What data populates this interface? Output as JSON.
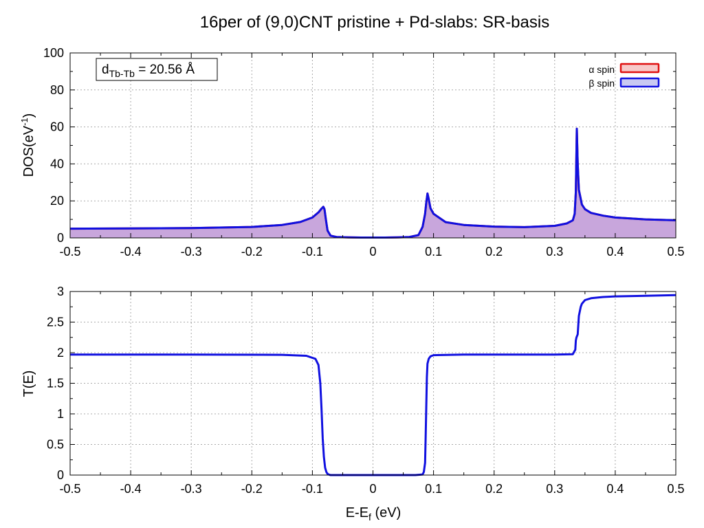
{
  "title": "16per of (9,0)CNT pristine + Pd-slabs: SR-basis",
  "colors": {
    "alpha_stroke": "#e01010",
    "alpha_fill": "#f7c9c9",
    "beta_stroke": "#1010e0",
    "beta_fill": "#c9c9f2",
    "overlap_fill": "#c8a6dc"
  },
  "chart_data": [
    {
      "type": "area",
      "panel": "top",
      "ylabel": "DOS(eV⁻¹)",
      "ylabel_main": "DOS(eV",
      "ylabel_sup": "-1",
      "ylabel_close": ")",
      "xlim": [
        -0.5,
        0.5
      ],
      "ylim": [
        0,
        100
      ],
      "xticks": [
        -0.5,
        -0.4,
        -0.3,
        -0.2,
        -0.1,
        0,
        0.1,
        0.2,
        0.3,
        0.4,
        0.5
      ],
      "xtick_labels": [
        "-0.5",
        "-0.4",
        "-0.3",
        "-0.2",
        "-0.1",
        "0",
        "0.1",
        "0.2",
        "0.3",
        "0.4",
        "0.5"
      ],
      "yticks": [
        0,
        20,
        40,
        60,
        80,
        100
      ],
      "ytick_labels": [
        "0",
        "20",
        "40",
        "60",
        "80",
        "100"
      ],
      "grid": true,
      "legend_position": "top-right",
      "annotation": {
        "main": "d",
        "sub": "Tb-Tb",
        "value": " = 20.56 Å"
      },
      "series": [
        {
          "name": "α spin",
          "x": [
            -0.5,
            -0.4,
            -0.3,
            -0.2,
            -0.15,
            -0.12,
            -0.1,
            -0.09,
            -0.085,
            -0.082,
            -0.08,
            -0.078,
            -0.075,
            -0.07,
            -0.06,
            -0.04,
            -0.02,
            0,
            0.02,
            0.04,
            0.06,
            0.075,
            0.082,
            0.086,
            0.088,
            0.09,
            0.092,
            0.095,
            0.1,
            0.12,
            0.15,
            0.2,
            0.25,
            0.3,
            0.32,
            0.33,
            0.333,
            0.335,
            0.3365,
            0.338,
            0.34,
            0.345,
            0.35,
            0.36,
            0.38,
            0.4,
            0.45,
            0.5
          ],
          "y": [
            5.0,
            5.1,
            5.3,
            5.9,
            7.0,
            8.6,
            11.0,
            13.8,
            15.8,
            16.8,
            15.5,
            10.5,
            4.0,
            1.2,
            0.5,
            0.3,
            0.2,
            0.2,
            0.2,
            0.3,
            0.5,
            1.5,
            6.0,
            13.0,
            19.0,
            24.0,
            21.0,
            16.0,
            13.0,
            8.5,
            7.0,
            6.1,
            5.8,
            6.5,
            7.8,
            9.5,
            13.0,
            25.0,
            59.0,
            40.0,
            26.0,
            18.0,
            15.5,
            13.5,
            12.0,
            11.0,
            10.0,
            9.5
          ]
        },
        {
          "name": "β spin",
          "x": [
            -0.5,
            -0.4,
            -0.3,
            -0.2,
            -0.15,
            -0.12,
            -0.1,
            -0.09,
            -0.085,
            -0.082,
            -0.08,
            -0.078,
            -0.075,
            -0.07,
            -0.06,
            -0.04,
            -0.02,
            0,
            0.02,
            0.04,
            0.06,
            0.075,
            0.082,
            0.086,
            0.088,
            0.09,
            0.092,
            0.095,
            0.1,
            0.12,
            0.15,
            0.2,
            0.25,
            0.3,
            0.32,
            0.33,
            0.333,
            0.335,
            0.3365,
            0.338,
            0.34,
            0.345,
            0.35,
            0.36,
            0.38,
            0.4,
            0.45,
            0.5
          ],
          "y": [
            5.0,
            5.1,
            5.3,
            5.9,
            7.0,
            8.6,
            11.0,
            13.8,
            15.8,
            16.8,
            15.5,
            10.5,
            4.0,
            1.2,
            0.5,
            0.3,
            0.2,
            0.2,
            0.2,
            0.3,
            0.5,
            1.5,
            6.0,
            13.0,
            19.0,
            24.0,
            21.0,
            16.0,
            13.0,
            8.5,
            7.0,
            6.1,
            5.8,
            6.5,
            7.8,
            9.5,
            13.0,
            25.0,
            59.0,
            40.0,
            26.0,
            18.0,
            15.5,
            13.5,
            12.0,
            11.0,
            10.0,
            9.5
          ]
        }
      ]
    },
    {
      "type": "line",
      "panel": "bottom",
      "ylabel": "T(E)",
      "xlabel": "E-Ef (eV)",
      "xlabel_main": "E-E",
      "xlabel_sub": "f",
      "xlabel_rest": " (eV)",
      "xlim": [
        -0.5,
        0.5
      ],
      "ylim": [
        0,
        3
      ],
      "xticks": [
        -0.5,
        -0.4,
        -0.3,
        -0.2,
        -0.1,
        0,
        0.1,
        0.2,
        0.3,
        0.4,
        0.5
      ],
      "xtick_labels": [
        "-0.5",
        "-0.4",
        "-0.3",
        "-0.2",
        "-0.1",
        "0",
        "0.1",
        "0.2",
        "0.3",
        "0.4",
        "0.5"
      ],
      "yticks": [
        0,
        0.5,
        1,
        1.5,
        2,
        2.5,
        3
      ],
      "ytick_labels": [
        "0",
        "0.5",
        "1",
        "1.5",
        "2",
        "2.5",
        "3"
      ],
      "grid": true,
      "series": [
        {
          "x": [
            -0.5,
            -0.3,
            -0.15,
            -0.11,
            -0.095,
            -0.09,
            -0.087,
            -0.085,
            -0.083,
            -0.081,
            -0.079,
            -0.077,
            -0.075,
            -0.072,
            -0.07,
            -0.06,
            0,
            0.07,
            0.082,
            0.084,
            0.086,
            0.087,
            0.088,
            0.089,
            0.09,
            0.092,
            0.095,
            0.1,
            0.15,
            0.3,
            0.33,
            0.334,
            0.335,
            0.336,
            0.338,
            0.34,
            0.342,
            0.343,
            0.345,
            0.35,
            0.36,
            0.38,
            0.4,
            0.45,
            0.5
          ],
          "y": [
            1.97,
            1.97,
            1.965,
            1.95,
            1.9,
            1.8,
            1.5,
            1.1,
            0.6,
            0.3,
            0.12,
            0.05,
            0.02,
            0.005,
            0.0,
            0.0,
            0.0,
            0.0,
            0.01,
            0.05,
            0.2,
            0.6,
            1.1,
            1.6,
            1.82,
            1.9,
            1.94,
            1.96,
            1.97,
            1.97,
            1.975,
            2.05,
            2.2,
            2.25,
            2.3,
            2.6,
            2.7,
            2.75,
            2.8,
            2.86,
            2.89,
            2.91,
            2.92,
            2.93,
            2.94
          ]
        }
      ]
    }
  ]
}
